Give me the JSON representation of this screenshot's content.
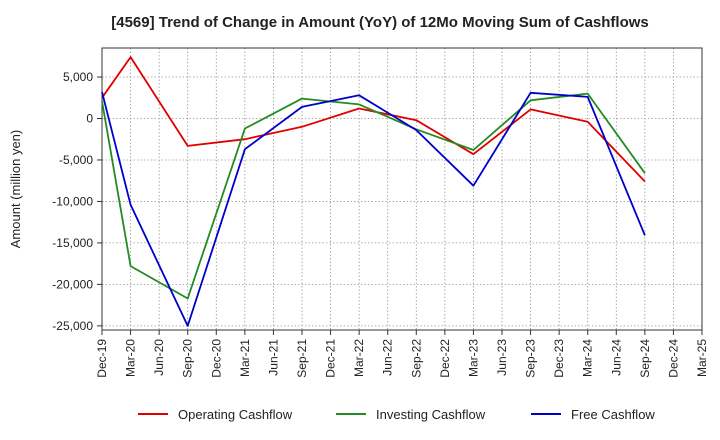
{
  "chart_data": {
    "type": "line",
    "title": "[4569]  Trend of Change in Amount (YoY) of 12Mo Moving Sum of Cashflows",
    "ylabel": "Amount (million yen)",
    "xlabel": "",
    "ylim": [
      -25500,
      8500
    ],
    "yticks": [
      5000,
      0,
      -5000,
      -10000,
      -15000,
      -20000,
      -25000
    ],
    "ytick_labels": [
      "5,000",
      "0",
      "-5,000",
      "-10,000",
      "-15,000",
      "-20,000",
      "-25,000"
    ],
    "categories": [
      "Dec-19",
      "Mar-20",
      "Jun-20",
      "Sep-20",
      "Dec-20",
      "Mar-21",
      "Jun-21",
      "Sep-21",
      "Dec-21",
      "Mar-22",
      "Jun-22",
      "Sep-22",
      "Dec-22",
      "Mar-23",
      "Jun-23",
      "Sep-23",
      "Dec-23",
      "Mar-24",
      "Jun-24",
      "Sep-24",
      "Dec-24",
      "Mar-25"
    ],
    "grid": true,
    "legend_position": "bottom",
    "series": [
      {
        "name": "Operating Cashflow",
        "color": "#e00000",
        "values": [
          2500,
          7400,
          null,
          -3300,
          null,
          -2500,
          null,
          -1000,
          null,
          1200,
          null,
          -200,
          null,
          -4300,
          null,
          1100,
          null,
          -400,
          null,
          -7600,
          null,
          null
        ]
      },
      {
        "name": "Investing Cashflow",
        "color": "#228b22",
        "values": [
          2100,
          -17800,
          null,
          -21700,
          null,
          -1200,
          null,
          2400,
          null,
          1700,
          null,
          -1300,
          null,
          -3800,
          null,
          2200,
          null,
          3000,
          null,
          -6600,
          null,
          null
        ]
      },
      {
        "name": "Free Cashflow",
        "color": "#0000cc",
        "values": [
          3200,
          -10400,
          null,
          -25000,
          null,
          -3700,
          null,
          1400,
          null,
          2800,
          null,
          -1400,
          null,
          -8100,
          null,
          3100,
          null,
          2600,
          null,
          -14100,
          null,
          null
        ]
      }
    ]
  }
}
